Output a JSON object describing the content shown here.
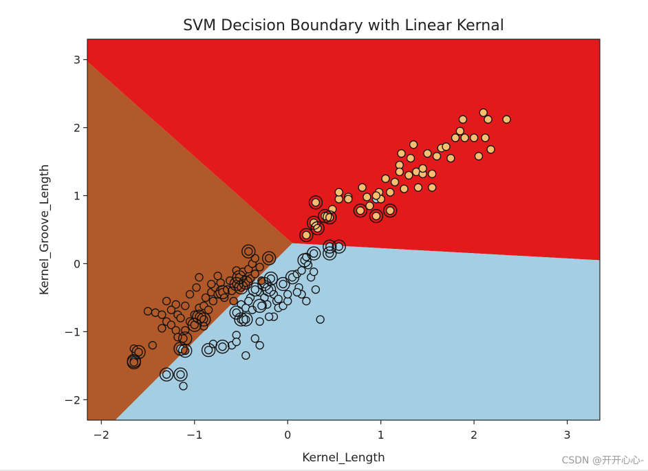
{
  "chart_data": {
    "type": "scatter",
    "title": "SVM Decision Boundary with Linear Kernal",
    "xlabel": "Kernel_Length",
    "ylabel": "Kernel_Groove_Length",
    "xlim": [
      -2.15,
      3.35
    ],
    "ylim": [
      -2.3,
      3.3
    ],
    "xticks": [
      -2,
      -1,
      0,
      1,
      2,
      3
    ],
    "yticks": [
      -2,
      -1,
      0,
      1,
      2,
      3
    ],
    "xtick_labels": [
      "−2",
      "−1",
      "0",
      "1",
      "2",
      "3"
    ],
    "ytick_labels": [
      "−2",
      "−1",
      "0",
      "1",
      "2",
      "3"
    ],
    "grid": false,
    "legend": "none",
    "regions": [
      {
        "class": 0,
        "color": "#a6cee3"
      },
      {
        "class": 1,
        "color": "#b15928"
      },
      {
        "class": 2,
        "color": "#e31a1c"
      }
    ],
    "boundaries": {
      "brown_red": {
        "p1": [
          -2.15,
          2.97
        ],
        "p2": [
          0.05,
          0.3
        ]
      },
      "brown_blue": {
        "p1": [
          -1.85,
          -2.3
        ],
        "p2": [
          0.05,
          0.3
        ]
      },
      "blue_red": {
        "p1": [
          0.05,
          0.3
        ],
        "p2": [
          3.35,
          0.05
        ]
      }
    },
    "series": [
      {
        "class": 0,
        "color": "#a6cee3",
        "points": [
          [
            -1.65,
            -1.43
          ],
          [
            -1.3,
            -1.63
          ],
          [
            -1.15,
            -1.63
          ],
          [
            -1.12,
            -1.8
          ],
          [
            -1.15,
            -1.25
          ],
          [
            -0.85,
            -1.27
          ],
          [
            -0.8,
            -1.18
          ],
          [
            -0.7,
            -1.22
          ],
          [
            -0.6,
            -1.2
          ],
          [
            -0.55,
            -1.05
          ],
          [
            -0.55,
            -1.15
          ],
          [
            -0.45,
            -1.35
          ],
          [
            -0.35,
            -1.1
          ],
          [
            -0.3,
            -1.2
          ],
          [
            -0.5,
            -0.82
          ],
          [
            -0.45,
            -0.82
          ],
          [
            -0.55,
            -0.72
          ],
          [
            -0.5,
            -0.6
          ],
          [
            -0.45,
            -0.65
          ],
          [
            -0.4,
            -0.5
          ],
          [
            -0.3,
            -0.42
          ],
          [
            -0.25,
            -0.5
          ],
          [
            -0.2,
            -0.38
          ],
          [
            -0.22,
            -0.6
          ],
          [
            -0.15,
            -0.45
          ],
          [
            -0.12,
            -0.55
          ],
          [
            -0.18,
            -0.22
          ],
          [
            -0.1,
            -0.52
          ],
          [
            -0.15,
            -0.78
          ],
          [
            -0.1,
            -0.65
          ],
          [
            -0.05,
            -0.62
          ],
          [
            0.0,
            -0.55
          ],
          [
            -0.05,
            -0.3
          ],
          [
            0.05,
            -0.2
          ],
          [
            0.1,
            -0.15
          ],
          [
            0.12,
            -0.35
          ],
          [
            0.15,
            -0.1
          ],
          [
            0.18,
            0.05
          ],
          [
            0.2,
            0.1
          ],
          [
            0.22,
            -0.02
          ],
          [
            0.25,
            -0.2
          ],
          [
            0.28,
            -0.12
          ],
          [
            0.15,
            -0.45
          ],
          [
            0.2,
            -0.55
          ],
          [
            0.3,
            -0.38
          ],
          [
            0.28,
            0.15
          ],
          [
            0.35,
            -0.82
          ],
          [
            0.45,
            0.15
          ],
          [
            0.45,
            0.25
          ],
          [
            0.55,
            0.25
          ],
          [
            0.1,
            -0.42
          ],
          [
            -0.25,
            -0.3
          ],
          [
            -0.35,
            -0.38
          ],
          [
            0.0,
            -0.45
          ],
          [
            0.95,
            0.95
          ],
          [
            -0.3,
            -0.85
          ],
          [
            -0.2,
            -0.78
          ],
          [
            -0.28,
            -0.62
          ],
          [
            -0.38,
            -0.68
          ],
          [
            -0.42,
            -0.55
          ]
        ]
      },
      {
        "class": 1,
        "color": "#b15928",
        "points": [
          [
            -1.65,
            -1.45
          ],
          [
            -1.65,
            -1.25
          ],
          [
            -1.6,
            -1.3
          ],
          [
            -1.45,
            -1.2
          ],
          [
            -1.5,
            -0.7
          ],
          [
            -1.42,
            -0.72
          ],
          [
            -1.35,
            -0.75
          ],
          [
            -1.3,
            -0.85
          ],
          [
            -1.25,
            -0.9
          ],
          [
            -1.2,
            -0.98
          ],
          [
            -1.18,
            -0.75
          ],
          [
            -1.2,
            -0.6
          ],
          [
            -1.15,
            -0.8
          ],
          [
            -1.1,
            -0.98
          ],
          [
            -1.12,
            -1.1
          ],
          [
            -1.05,
            -0.85
          ],
          [
            -1.0,
            -0.75
          ],
          [
            -1.0,
            -0.9
          ],
          [
            -0.95,
            -0.65
          ],
          [
            -0.95,
            -0.78
          ],
          [
            -0.9,
            -0.62
          ],
          [
            -0.9,
            -0.82
          ],
          [
            -0.88,
            -0.5
          ],
          [
            -0.85,
            -0.68
          ],
          [
            -0.82,
            -0.42
          ],
          [
            -0.8,
            -0.55
          ],
          [
            -0.78,
            -0.35
          ],
          [
            -0.75,
            -0.45
          ],
          [
            -0.72,
            -0.28
          ],
          [
            -0.7,
            -0.42
          ],
          [
            -0.68,
            -0.5
          ],
          [
            -0.65,
            -0.38
          ],
          [
            -0.62,
            -0.25
          ],
          [
            -0.6,
            -0.4
          ],
          [
            -0.58,
            -0.55
          ],
          [
            -0.55,
            -0.3
          ],
          [
            -0.55,
            -0.1
          ],
          [
            -0.52,
            -0.2
          ],
          [
            -0.5,
            -0.35
          ],
          [
            -0.48,
            -0.12
          ],
          [
            -0.45,
            -0.28
          ],
          [
            -0.42,
            -0.08
          ],
          [
            -0.4,
            -0.22
          ],
          [
            -0.38,
            0.0
          ],
          [
            -0.35,
            0.08
          ],
          [
            -0.35,
            -0.15
          ],
          [
            -0.3,
            -0.05
          ],
          [
            -0.28,
            -0.25
          ],
          [
            -0.42,
            0.18
          ],
          [
            -0.2,
            0.08
          ],
          [
            -1.1,
            -1.28
          ],
          [
            -1.18,
            -1.08
          ],
          [
            -1.05,
            -0.45
          ],
          [
            -0.95,
            -0.2
          ],
          [
            -0.98,
            -0.35
          ],
          [
            -0.82,
            -0.3
          ],
          [
            -1.3,
            -0.55
          ],
          [
            -1.25,
            -0.68
          ],
          [
            -1.35,
            -0.95
          ],
          [
            -1.1,
            -0.62
          ],
          [
            -0.9,
            -0.92
          ],
          [
            -0.75,
            -0.18
          ]
        ]
      },
      {
        "class": 2,
        "color": "#e31a1c",
        "points": [
          [
            0.2,
            0.42
          ],
          [
            0.28,
            0.6
          ],
          [
            0.32,
            0.52
          ],
          [
            0.3,
            0.9
          ],
          [
            0.4,
            0.7
          ],
          [
            0.45,
            0.68
          ],
          [
            0.48,
            0.8
          ],
          [
            0.55,
            0.95
          ],
          [
            0.55,
            1.05
          ],
          [
            0.65,
            0.98
          ],
          [
            0.78,
            0.78
          ],
          [
            0.8,
            1.12
          ],
          [
            0.85,
            0.98
          ],
          [
            0.88,
            0.85
          ],
          [
            0.95,
            0.7
          ],
          [
            0.98,
            1.05
          ],
          [
            1.0,
            0.95
          ],
          [
            1.05,
            1.25
          ],
          [
            1.1,
            0.78
          ],
          [
            1.1,
            1.05
          ],
          [
            1.15,
            1.2
          ],
          [
            1.2,
            1.45
          ],
          [
            1.22,
            1.62
          ],
          [
            1.25,
            1.1
          ],
          [
            1.3,
            1.3
          ],
          [
            1.32,
            1.55
          ],
          [
            1.35,
            1.75
          ],
          [
            1.38,
            1.35
          ],
          [
            1.4,
            1.12
          ],
          [
            1.45,
            1.32
          ],
          [
            1.5,
            1.62
          ],
          [
            1.55,
            1.12
          ],
          [
            1.6,
            1.58
          ],
          [
            1.65,
            1.7
          ],
          [
            1.7,
            1.72
          ],
          [
            1.75,
            1.55
          ],
          [
            1.8,
            1.85
          ],
          [
            1.85,
            1.95
          ],
          [
            1.88,
            2.12
          ],
          [
            1.9,
            1.85
          ],
          [
            2.0,
            1.85
          ],
          [
            2.05,
            1.58
          ],
          [
            2.1,
            2.22
          ],
          [
            2.12,
            1.85
          ],
          [
            2.15,
            2.12
          ],
          [
            2.18,
            1.68
          ],
          [
            2.35,
            2.12
          ],
          [
            1.45,
            1.4
          ],
          [
            1.55,
            1.32
          ],
          [
            0.95,
            1.0
          ],
          [
            0.65,
            0.95
          ],
          [
            1.2,
            1.35
          ]
        ]
      }
    ],
    "support_vectors": [
      [
        -1.65,
        -1.43
      ],
      [
        -1.3,
        -1.63
      ],
      [
        -1.15,
        -1.63
      ],
      [
        -1.15,
        -1.25
      ],
      [
        -0.85,
        -1.27
      ],
      [
        -0.7,
        -1.22
      ],
      [
        -0.5,
        -0.82
      ],
      [
        -0.45,
        -0.82
      ],
      [
        -0.55,
        -0.72
      ],
      [
        -0.2,
        -0.38
      ],
      [
        -0.18,
        -0.22
      ],
      [
        -0.05,
        -0.3
      ],
      [
        0.05,
        -0.2
      ],
      [
        0.18,
        0.05
      ],
      [
        0.45,
        0.15
      ],
      [
        0.45,
        0.25
      ],
      [
        0.55,
        0.25
      ],
      [
        0.28,
        0.15
      ],
      [
        -0.25,
        -0.3
      ],
      [
        -0.35,
        -0.38
      ],
      [
        -0.3,
        -0.62
      ],
      [
        -1.65,
        -1.45
      ],
      [
        -1.6,
        -1.3
      ],
      [
        -1.1,
        -1.1
      ],
      [
        -1.1,
        -1.28
      ],
      [
        -1.0,
        -0.9
      ],
      [
        -0.95,
        -0.78
      ],
      [
        -0.9,
        -0.82
      ],
      [
        -0.7,
        -0.42
      ],
      [
        -0.55,
        -0.3
      ],
      [
        -0.5,
        -0.35
      ],
      [
        -0.45,
        -0.28
      ],
      [
        -0.42,
        0.18
      ],
      [
        -0.2,
        0.08
      ],
      [
        -0.52,
        -0.2
      ],
      [
        0.2,
        0.42
      ],
      [
        0.28,
        0.6
      ],
      [
        0.32,
        0.52
      ],
      [
        0.3,
        0.9
      ],
      [
        0.4,
        0.7
      ],
      [
        0.45,
        0.68
      ],
      [
        0.78,
        0.78
      ],
      [
        0.95,
        0.7
      ],
      [
        1.1,
        0.78
      ]
    ]
  },
  "watermark": "CSDN @开开心心-"
}
